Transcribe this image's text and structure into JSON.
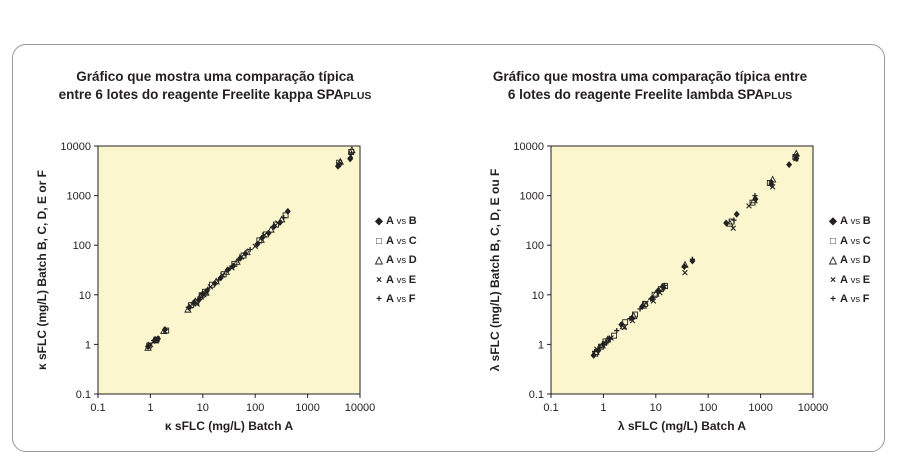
{
  "chart_data": [
    {
      "type": "scatter",
      "title_line1": "Gráfico que mostra uma comparação típica",
      "title_line2_main": "entre 6 lotes do reagente Freelite kappa SPA",
      "title_line2_suffix": "PLUS",
      "xlabel": "κ sFLC (mg/L) Batch A",
      "ylabel": "κ sFLC (mg/L) Batch B, C, D, E or F",
      "x_scale": "log",
      "y_scale": "log",
      "xlim": [
        0.1,
        10000
      ],
      "ylim": [
        0.1,
        10000
      ],
      "x_ticks": [
        "0.1",
        "1",
        "10",
        "100",
        "1000",
        "10000"
      ],
      "y_ticks": [
        "0.1",
        "1",
        "10",
        "100",
        "1000",
        "10000"
      ],
      "legend_position": "right",
      "series": [
        {
          "name": "A vs B",
          "marker": "diamond",
          "points": [
            [
              0.9,
              0.9
            ],
            [
              1.2,
              1.2
            ],
            [
              1.4,
              1.3
            ],
            [
              1.9,
              2.0
            ],
            [
              5.5,
              5.5
            ],
            [
              6.8,
              7.0
            ],
            [
              8.5,
              8.0
            ],
            [
              10,
              10.5
            ],
            [
              12,
              12
            ],
            [
              17,
              17
            ],
            [
              22,
              22
            ],
            [
              30,
              32
            ],
            [
              38,
              38
            ],
            [
              52,
              55
            ],
            [
              65,
              68
            ],
            [
              110,
              105
            ],
            [
              135,
              140
            ],
            [
              180,
              175
            ],
            [
              230,
              240
            ],
            [
              300,
              290
            ],
            [
              420,
              480
            ],
            [
              3800,
              3900
            ],
            [
              6500,
              5500
            ]
          ]
        },
        {
          "name": "A vs C",
          "marker": "square-open",
          "points": [
            [
              0.95,
              0.95
            ],
            [
              1.3,
              1.25
            ],
            [
              2.0,
              1.9
            ],
            [
              6.0,
              6.2
            ],
            [
              7.5,
              7.0
            ],
            [
              9.5,
              9.8
            ],
            [
              11,
              11.5
            ],
            [
              15,
              16
            ],
            [
              25,
              26
            ],
            [
              40,
              42
            ],
            [
              60,
              62
            ],
            [
              120,
              125
            ],
            [
              160,
              165
            ],
            [
              250,
              260
            ],
            [
              380,
              400
            ],
            [
              4000,
              4600
            ],
            [
              6800,
              7600
            ]
          ]
        },
        {
          "name": "A vs D",
          "marker": "triangle-open",
          "points": [
            [
              0.9,
              0.85
            ],
            [
              1.25,
              1.2
            ],
            [
              1.8,
              1.85
            ],
            [
              5.2,
              5.0
            ],
            [
              7.2,
              7.4
            ],
            [
              9.0,
              9.2
            ],
            [
              11.5,
              11
            ],
            [
              18,
              18.5
            ],
            [
              28,
              29
            ],
            [
              45,
              46
            ],
            [
              70,
              72
            ],
            [
              130,
              128
            ],
            [
              200,
              205
            ],
            [
              320,
              330
            ],
            [
              4200,
              4800
            ],
            [
              7000,
              8200
            ]
          ]
        },
        {
          "name": "A vs E",
          "marker": "x",
          "points": [
            [
              1.0,
              1.0
            ],
            [
              1.35,
              1.3
            ],
            [
              5.8,
              6.0
            ],
            [
              7.8,
              6.5
            ],
            [
              10.5,
              10
            ],
            [
              14,
              14.5
            ],
            [
              24,
              25
            ],
            [
              36,
              35
            ],
            [
              55,
              58
            ],
            [
              100,
              95
            ],
            [
              150,
              160
            ],
            [
              270,
              280
            ],
            [
              3900,
              4200
            ],
            [
              6600,
              6400
            ]
          ]
        },
        {
          "name": "A vs F",
          "marker": "plus",
          "points": [
            [
              0.92,
              0.95
            ],
            [
              1.15,
              1.2
            ],
            [
              1.9,
              1.95
            ],
            [
              5.3,
              5.6
            ],
            [
              6.5,
              6.8
            ],
            [
              8.8,
              9.0
            ],
            [
              12.5,
              13
            ],
            [
              20,
              20
            ],
            [
              33,
              34
            ],
            [
              48,
              50
            ],
            [
              80,
              82
            ],
            [
              140,
              145
            ],
            [
              220,
              230
            ],
            [
              350,
              360
            ],
            [
              4100,
              4400
            ],
            [
              6900,
              7200
            ]
          ]
        }
      ]
    },
    {
      "type": "scatter",
      "title_line1": "Gráfico que mostra uma comparação típica entre",
      "title_line2_main": "6 lotes do reagente Freelite lambda SPA",
      "title_line2_suffix": "PLUS",
      "xlabel": "λ sFLC (mg/L) Batch A",
      "ylabel": "λ sFLC (mg/L) Batch B, C, D, E ou F",
      "x_scale": "log",
      "y_scale": "log",
      "xlim": [
        0.1,
        10000
      ],
      "ylim": [
        0.1,
        10000
      ],
      "x_ticks": [
        "0.1",
        "1",
        "10",
        "100",
        "1000",
        "10000"
      ],
      "y_ticks": [
        "0.1",
        "1",
        "10",
        "100",
        "1000",
        "10000"
      ],
      "legend_position": "right",
      "series": [
        {
          "name": "A vs B",
          "marker": "diamond",
          "points": [
            [
              0.65,
              0.6
            ],
            [
              0.8,
              0.75
            ],
            [
              1.0,
              1.0
            ],
            [
              1.3,
              1.3
            ],
            [
              2.2,
              2.5
            ],
            [
              3.5,
              3.4
            ],
            [
              5.5,
              5.8
            ],
            [
              8.5,
              8.5
            ],
            [
              11,
              12
            ],
            [
              14,
              14
            ],
            [
              35,
              37
            ],
            [
              50,
              48
            ],
            [
              220,
              280
            ],
            [
              350,
              420
            ],
            [
              800,
              850
            ],
            [
              1600,
              1700
            ],
            [
              3500,
              4200
            ],
            [
              4800,
              5600
            ]
          ]
        },
        {
          "name": "A vs C",
          "marker": "square-open",
          "points": [
            [
              0.7,
              0.65
            ],
            [
              0.9,
              0.9
            ],
            [
              1.1,
              1.15
            ],
            [
              1.6,
              1.5
            ],
            [
              2.6,
              2.8
            ],
            [
              4.0,
              4.0
            ],
            [
              6.2,
              6.5
            ],
            [
              9.5,
              10
            ],
            [
              12.5,
              13
            ],
            [
              15,
              15
            ],
            [
              280,
              300
            ],
            [
              700,
              720
            ],
            [
              1500,
              1800
            ],
            [
              4600,
              6000
            ]
          ]
        },
        {
          "name": "A vs D",
          "marker": "triangle-open",
          "points": [
            [
              0.72,
              0.7
            ],
            [
              0.95,
              0.95
            ],
            [
              1.2,
              1.25
            ],
            [
              2.4,
              2.3
            ],
            [
              3.8,
              3.7
            ],
            [
              5.8,
              6.0
            ],
            [
              10,
              10.5
            ],
            [
              13,
              14
            ],
            [
              36,
              40
            ],
            [
              260,
              270
            ],
            [
              750,
              800
            ],
            [
              1700,
              2100
            ],
            [
              4800,
              7000
            ]
          ]
        },
        {
          "name": "A vs E",
          "marker": "x",
          "points": [
            [
              0.75,
              0.8
            ],
            [
              1.05,
              1.05
            ],
            [
              1.4,
              1.35
            ],
            [
              2.5,
              2.2
            ],
            [
              3.6,
              3.0
            ],
            [
              6.5,
              6.8
            ],
            [
              9,
              7.5
            ],
            [
              12,
              11
            ],
            [
              36,
              28
            ],
            [
              300,
              220
            ],
            [
              600,
              620
            ],
            [
              1700,
              1500
            ],
            [
              4700,
              5500
            ]
          ]
        },
        {
          "name": "A vs F",
          "marker": "plus",
          "points": [
            [
              0.68,
              0.72
            ],
            [
              0.85,
              0.88
            ],
            [
              1.15,
              1.1
            ],
            [
              1.8,
              1.9
            ],
            [
              3.2,
              3.3
            ],
            [
              5.0,
              5.2
            ],
            [
              8.0,
              8.2
            ],
            [
              11.5,
              12
            ],
            [
              14.5,
              15.5
            ],
            [
              50,
              52
            ],
            [
              310,
              320
            ],
            [
              780,
              1000
            ],
            [
              1600,
              1900
            ],
            [
              4900,
              6400
            ]
          ]
        }
      ]
    }
  ]
}
